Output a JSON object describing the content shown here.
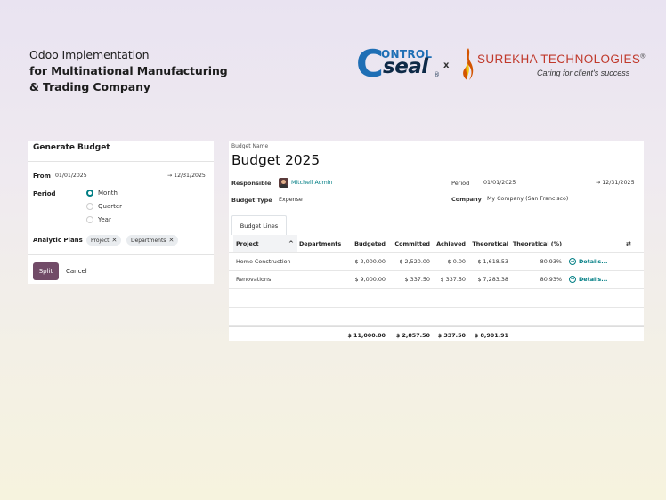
{
  "headline": {
    "line1": "Odoo Implementation",
    "line2": "for Multinational Manufacturing",
    "line3": "& Trading Company"
  },
  "logos": {
    "controlseal_c": "C",
    "controlseal_top": "ONTROL",
    "controlseal_bottom": "seal",
    "controlseal_reg": "®",
    "separator": "x",
    "surekha_name": "SUREKHA TECHNOLOGIES",
    "surekha_reg": "®",
    "surekha_tagline": "Caring for client's success"
  },
  "dialog": {
    "title": "Generate Budget",
    "from_label": "From",
    "from_date": "01/01/2025",
    "to_date": "→ 12/31/2025",
    "period_label": "Period",
    "period_options": [
      "Month",
      "Quarter",
      "Year"
    ],
    "period_selected": "Month",
    "analytic_label": "Analytic Plans",
    "tags": [
      "Project",
      "Departments"
    ],
    "split_label": "Split",
    "cancel_label": "Cancel"
  },
  "budget": {
    "name_label": "Budget Name",
    "name": "Budget 2025",
    "responsible_label": "Responsible",
    "responsible": "Mitchell Admin",
    "type_label": "Budget Type",
    "type": "Expense",
    "period_label": "Period",
    "period_from": "01/01/2025",
    "period_to": "→ 12/31/2025",
    "company_label": "Company",
    "company": "My Company (San Francisco)",
    "tab": "Budget Lines"
  },
  "table": {
    "headers": {
      "project": "Project",
      "departments": "Departments",
      "budgeted": "Budgeted",
      "committed": "Committed",
      "achieved": "Achieved",
      "theoretical": "Theoretical",
      "theoretical_pct": "Theoretical (%)"
    },
    "rows": [
      {
        "project": "Home Construction",
        "departments": "",
        "budgeted": "$ 2,000.00",
        "committed": "$ 2,520.00",
        "achieved": "$ 0.00",
        "theoretical": "$ 1,618.53",
        "theoretical_pct": "80.93%",
        "details": "Details..."
      },
      {
        "project": "Renovations",
        "departments": "",
        "budgeted": "$ 9,000.00",
        "committed": "$ 337.50",
        "achieved": "$ 337.50",
        "theoretical": "$ 7,283.38",
        "theoretical_pct": "80.93%",
        "details": "Details..."
      }
    ],
    "totals": {
      "budgeted": "$ 11,000.00",
      "committed": "$ 2,857.50",
      "achieved": "$ 337.50",
      "theoretical": "$ 8,901.91"
    }
  },
  "colors": {
    "primary": "#714b67",
    "link": "#017e84",
    "controlseal_blue": "#1f6fb5",
    "surekha_red": "#c0392b"
  }
}
